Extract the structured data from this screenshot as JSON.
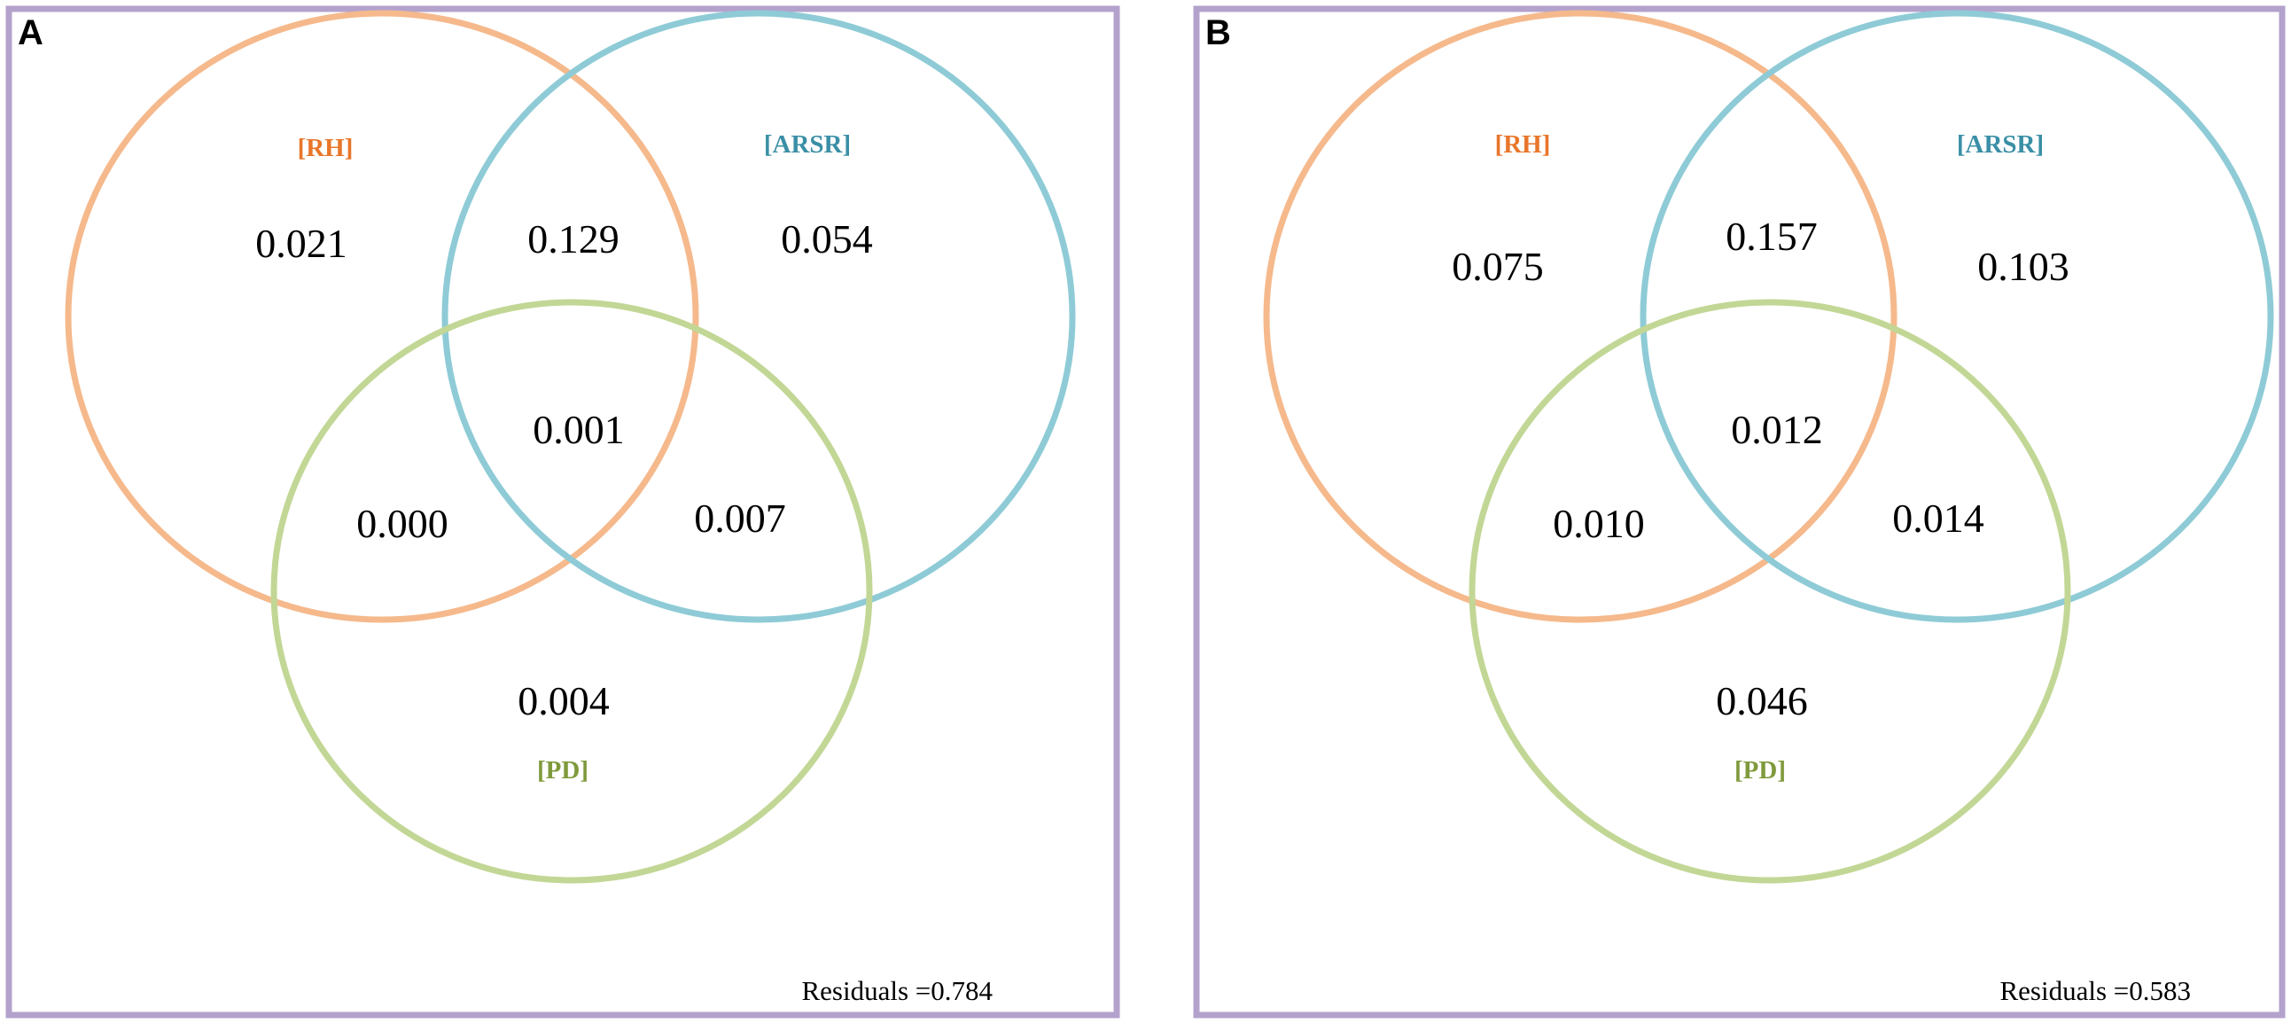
{
  "panels": [
    {
      "letter": "A",
      "sets": [
        {
          "key": "RH",
          "label": "[RH]",
          "stroke": "#f5b98c",
          "label_color": "#e8762a"
        },
        {
          "key": "ARSR",
          "label": "[ARSR]",
          "stroke": "#8ecbd6",
          "label_color": "#3a8fa6"
        },
        {
          "key": "PD",
          "label": "[PD]",
          "stroke": "#c2d795",
          "label_color": "#7f9a3c"
        }
      ],
      "regions": {
        "RH_only": "0.021",
        "RH_ARSR": "0.129",
        "ARSR_only": "0.054",
        "all_three": "0.001",
        "RH_PD": "0.000",
        "ARSR_PD": "0.007",
        "PD_only": "0.004"
      },
      "residuals": "Residuals =0.784"
    },
    {
      "letter": "B",
      "sets": [
        {
          "key": "RH",
          "label": "[RH]",
          "stroke": "#f5b98c",
          "label_color": "#e8762a"
        },
        {
          "key": "ARSR",
          "label": "[ARSR]",
          "stroke": "#8ecbd6",
          "label_color": "#3a8fa6"
        },
        {
          "key": "PD",
          "label": "[PD]",
          "stroke": "#c2d795",
          "label_color": "#7f9a3c"
        }
      ],
      "regions": {
        "RH_only": "0.075",
        "RH_ARSR": "0.157",
        "ARSR_only": "0.103",
        "all_three": "0.012",
        "RH_PD": "0.010",
        "ARSR_PD": "0.014",
        "PD_only": "0.046"
      },
      "residuals": "Residuals =0.583"
    }
  ],
  "frame_color": "#b3a2cc"
}
